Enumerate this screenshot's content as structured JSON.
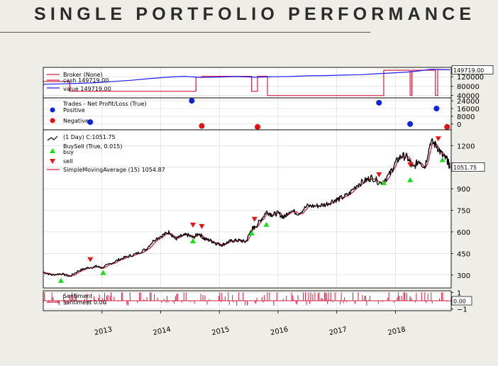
{
  "slide": {
    "title": "SINGLE PORTFOLIO PERFORMANCE"
  },
  "colors": {
    "background": "#eeede7",
    "broker_cash": "#d11f3f",
    "broker_value": "#1c1cff",
    "price": "#000000",
    "sma": "#d11f3f",
    "buy": "#12e012",
    "sell": "#ee1111",
    "positive": "#0a24e0",
    "negative": "#e81010",
    "sentiment": "#d11f3f"
  },
  "chart_data": [
    {
      "type": "line",
      "panel": "broker",
      "legend": [
        "Broker (None)",
        "cash 149719.00",
        "value 149719.00"
      ],
      "yticks": [
        "120000",
        "80000",
        "40000"
      ],
      "ylim": [
        30000,
        160000
      ],
      "last_value_label": "149719.00",
      "series": [
        {
          "name": "cash",
          "x": [
            2012.0,
            2012.45,
            2012.45,
            2014.6,
            2014.6,
            2014.7,
            2014.7,
            2015.55,
            2015.55,
            2015.65,
            2015.65,
            2015.82,
            2015.82,
            2017.8,
            2017.8,
            2018.25,
            2018.25,
            2018.28,
            2018.28,
            2018.68,
            2018.68,
            2018.72,
            2018.72,
            2018.88,
            2018.88,
            2018.93
          ],
          "values": [
            100000,
            100000,
            58000,
            58000,
            118000,
            118000,
            122000,
            122000,
            58000,
            58000,
            122000,
            122000,
            40000,
            40000,
            148000,
            148000,
            40000,
            40000,
            148000,
            148000,
            40000,
            40000,
            150000,
            150000,
            149719,
            149719
          ]
        },
        {
          "name": "value",
          "x": [
            2012.0,
            2012.3,
            2012.6,
            2012.9,
            2013.2,
            2013.5,
            2013.8,
            2014.1,
            2014.4,
            2014.7,
            2015.0,
            2015.3,
            2015.6,
            2015.9,
            2016.2,
            2016.5,
            2016.8,
            2017.1,
            2017.4,
            2017.7,
            2018.0,
            2018.2,
            2018.4,
            2018.6,
            2018.75,
            2018.93
          ],
          "values": [
            88000,
            90000,
            92000,
            95000,
            100000,
            105000,
            112000,
            118000,
            122000,
            117000,
            119000,
            121000,
            118000,
            120000,
            121000,
            124000,
            125000,
            127000,
            129000,
            133000,
            137000,
            140000,
            145000,
            152000,
            151000,
            149719
          ]
        }
      ]
    },
    {
      "type": "scatter",
      "panel": "trades",
      "legend": [
        "Trades - Net Profit/Loss (True)",
        "Positive",
        "Negative"
      ],
      "yticks": [
        "24000",
        "16000",
        "8000",
        "0"
      ],
      "ylim": [
        -6000,
        27000
      ],
      "series": [
        {
          "name": "Positive",
          "x": [
            2012.8,
            2014.53,
            2017.72,
            2018.25,
            2018.7
          ],
          "values": [
            2000,
            24000,
            22000,
            0,
            16000
          ]
        },
        {
          "name": "Negative",
          "x": [
            2014.7,
            2015.65,
            2018.88
          ],
          "values": [
            -2000,
            -3000,
            -3000
          ]
        }
      ]
    },
    {
      "type": "line",
      "panel": "price",
      "legend": [
        "(1 Day) C:1051.75",
        "BuySell (True, 0.015)",
        "buy",
        "sell",
        "SimpleMovingAverage (15) 1054.87"
      ],
      "yticks": [
        "1200",
        "1050",
        "900",
        "750",
        "600",
        "450",
        "300"
      ],
      "ylim": [
        210,
        1310
      ],
      "last_value_label": "1051.75",
      "series": [
        {
          "name": "close",
          "x": [
            2012.0,
            2012.15,
            2012.3,
            2012.45,
            2012.6,
            2012.75,
            2012.9,
            2013.0,
            2013.15,
            2013.3,
            2013.45,
            2013.6,
            2013.75,
            2013.9,
            2014.05,
            2014.15,
            2014.25,
            2014.35,
            2014.45,
            2014.55,
            2014.65,
            2014.75,
            2014.85,
            2014.95,
            2015.05,
            2015.15,
            2015.25,
            2015.35,
            2015.45,
            2015.55,
            2015.6,
            2015.7,
            2015.8,
            2015.9,
            2016.0,
            2016.1,
            2016.2,
            2016.35,
            2016.5,
            2016.65,
            2016.8,
            2016.95,
            2017.05,
            2017.2,
            2017.35,
            2017.5,
            2017.6,
            2017.75,
            2017.9,
            2018.0,
            2018.1,
            2018.2,
            2018.3,
            2018.4,
            2018.5,
            2018.6,
            2018.7,
            2018.8,
            2018.88,
            2018.93
          ],
          "values": [
            320,
            300,
            310,
            290,
            330,
            350,
            360,
            350,
            380,
            410,
            430,
            450,
            480,
            550,
            580,
            600,
            550,
            570,
            580,
            560,
            590,
            550,
            540,
            520,
            510,
            530,
            540,
            540,
            530,
            620,
            630,
            680,
            740,
            720,
            730,
            700,
            750,
            730,
            780,
            780,
            790,
            820,
            830,
            860,
            930,
            960,
            980,
            940,
            1000,
            1080,
            1130,
            1120,
            1040,
            1100,
            1050,
            1230,
            1200,
            1130,
            1100,
            1051.75
          ]
        }
      ],
      "markers": {
        "buy": [
          {
            "x": 2012.3,
            "y": 300
          },
          {
            "x": 2013.02,
            "y": 355
          },
          {
            "x": 2014.55,
            "y": 575
          },
          {
            "x": 2015.55,
            "y": 630
          },
          {
            "x": 2015.8,
            "y": 690
          },
          {
            "x": 2017.8,
            "y": 980
          },
          {
            "x": 2018.25,
            "y": 1000
          },
          {
            "x": 2018.8,
            "y": 1140
          }
        ],
        "sell": [
          {
            "x": 2012.8,
            "y": 370
          },
          {
            "x": 2014.55,
            "y": 610
          },
          {
            "x": 2014.7,
            "y": 600
          },
          {
            "x": 2015.6,
            "y": 650
          },
          {
            "x": 2017.72,
            "y": 960
          },
          {
            "x": 2018.25,
            "y": 1030
          },
          {
            "x": 2018.73,
            "y": 1210
          }
        ]
      }
    },
    {
      "type": "bar",
      "panel": "sentiment",
      "legend": [
        "Sentiment",
        "sentiment 0.00"
      ],
      "yticks": [
        "1",
        "0",
        "−1"
      ],
      "ylim": [
        -1.2,
        1.2
      ],
      "last_value_label": "0.00",
      "x_ticks": [
        "2013",
        "2014",
        "2015",
        "2016",
        "2017",
        "2018"
      ],
      "xlim": [
        2012.0,
        2018.95
      ]
    }
  ]
}
